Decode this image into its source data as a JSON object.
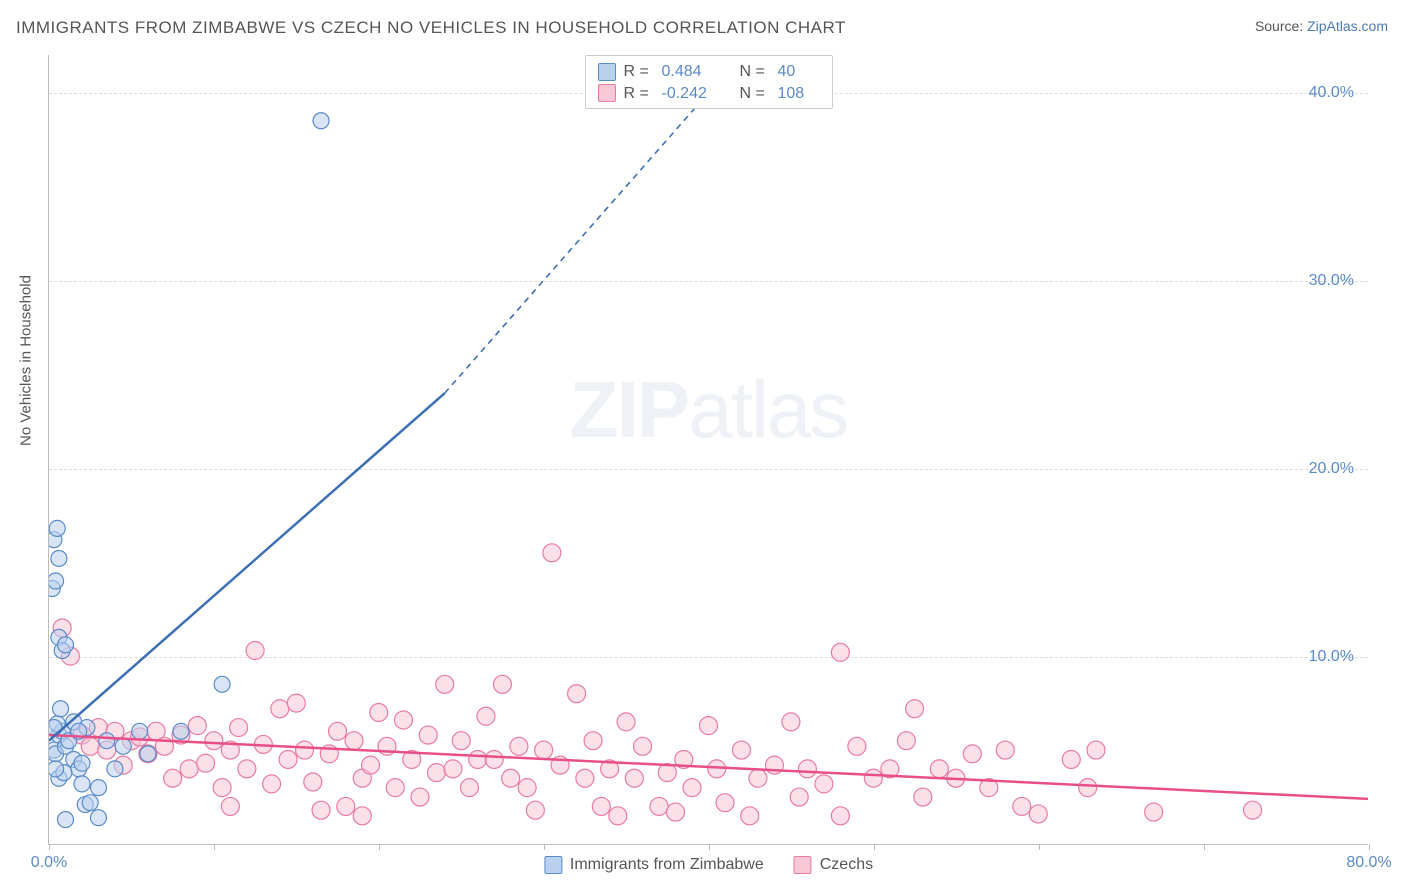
{
  "title": "IMMIGRANTS FROM ZIMBABWE VS CZECH NO VEHICLES IN HOUSEHOLD CORRELATION CHART",
  "source_prefix": "Source: ",
  "source_link": "ZipAtlas.com",
  "y_axis_label": "No Vehicles in Household",
  "watermark_a": "ZIP",
  "watermark_b": "atlas",
  "chart": {
    "type": "scatter",
    "background_color": "#ffffff",
    "grid_color": "#dddddd",
    "axis_color": "#bbbbbb",
    "xlim": [
      0,
      80
    ],
    "ylim": [
      0,
      42
    ],
    "x_ticks": [
      0,
      10,
      20,
      30,
      40,
      50,
      60,
      70,
      80
    ],
    "x_tick_labels": {
      "0": "0.0%",
      "80": "80.0%"
    },
    "y_ticks": [
      10,
      20,
      30,
      40
    ],
    "y_tick_labels": {
      "10": "10.0%",
      "20": "20.0%",
      "30": "30.0%",
      "40": "40.0%"
    },
    "tick_label_color": "#5a8bc9",
    "tick_label_fontsize": 16,
    "title_fontsize": 17,
    "title_color": "#555555",
    "axis_label_fontsize": 15
  },
  "series_a": {
    "name": "Immigrants from Zimbabwe",
    "fill_color": "#b9d0ee",
    "stroke_color": "#5a8bc9",
    "line_color": "#3d6fb5",
    "marker_radius": 8,
    "fill_opacity": 0.55,
    "R_label": "R =",
    "R_value": "0.484",
    "N_label": "N =",
    "N_value": "40",
    "trend": {
      "x1": 0,
      "y1": 5.5,
      "x2": 24,
      "y2": 24,
      "x2_dash": 42,
      "y2_dash": 42
    },
    "points": [
      [
        0.3,
        5.0
      ],
      [
        0.4,
        4.8
      ],
      [
        0.6,
        5.8
      ],
      [
        0.8,
        6.0
      ],
      [
        0.5,
        6.4
      ],
      [
        0.3,
        6.2
      ],
      [
        1.0,
        5.2
      ],
      [
        1.2,
        5.5
      ],
      [
        1.5,
        4.5
      ],
      [
        1.8,
        4.0
      ],
      [
        2.0,
        3.2
      ],
      [
        2.2,
        2.1
      ],
      [
        2.5,
        2.2
      ],
      [
        1.0,
        1.3
      ],
      [
        3.0,
        1.4
      ],
      [
        0.6,
        3.5
      ],
      [
        0.9,
        3.8
      ],
      [
        0.4,
        4.0
      ],
      [
        0.2,
        13.6
      ],
      [
        0.4,
        14.0
      ],
      [
        0.3,
        16.2
      ],
      [
        0.5,
        16.8
      ],
      [
        0.6,
        15.2
      ],
      [
        0.6,
        11.0
      ],
      [
        0.8,
        10.3
      ],
      [
        1.0,
        10.6
      ],
      [
        1.5,
        6.5
      ],
      [
        2.3,
        6.2
      ],
      [
        3.5,
        5.5
      ],
      [
        4.5,
        5.2
      ],
      [
        5.5,
        6.0
      ],
      [
        6.0,
        4.8
      ],
      [
        8.0,
        6.0
      ],
      [
        10.5,
        8.5
      ],
      [
        16.5,
        38.5
      ],
      [
        3.0,
        3.0
      ],
      [
        0.7,
        7.2
      ],
      [
        1.8,
        6.0
      ],
      [
        2.0,
        4.3
      ],
      [
        4.0,
        4.0
      ]
    ]
  },
  "series_b": {
    "name": "Czechs",
    "fill_color": "#f7c7d6",
    "stroke_color": "#e97ba3",
    "line_color": "#e84f88",
    "marker_radius": 9,
    "fill_opacity": 0.55,
    "R_label": "R =",
    "R_value": "-0.242",
    "N_label": "N =",
    "N_value": "108",
    "trend": {
      "x1": 0,
      "y1": 5.8,
      "x2": 80,
      "y2": 2.4
    },
    "points": [
      [
        0.8,
        11.5
      ],
      [
        1.3,
        10.0
      ],
      [
        2.0,
        5.8
      ],
      [
        2.5,
        5.2
      ],
      [
        3.0,
        6.2
      ],
      [
        3.5,
        5.0
      ],
      [
        4.0,
        6.0
      ],
      [
        4.5,
        4.2
      ],
      [
        5.0,
        5.5
      ],
      [
        5.5,
        5.7
      ],
      [
        6.0,
        4.8
      ],
      [
        6.5,
        6.0
      ],
      [
        7.0,
        5.2
      ],
      [
        7.5,
        3.5
      ],
      [
        8.0,
        5.8
      ],
      [
        8.5,
        4.0
      ],
      [
        9.0,
        6.3
      ],
      [
        9.5,
        4.3
      ],
      [
        10.0,
        5.5
      ],
      [
        10.5,
        3.0
      ],
      [
        11.0,
        5.0
      ],
      [
        11.5,
        6.2
      ],
      [
        12.0,
        4.0
      ],
      [
        12.5,
        10.3
      ],
      [
        13.0,
        5.3
      ],
      [
        13.5,
        3.2
      ],
      [
        14.0,
        7.2
      ],
      [
        14.5,
        4.5
      ],
      [
        15.0,
        7.5
      ],
      [
        15.5,
        5.0
      ],
      [
        16.0,
        3.3
      ],
      [
        16.5,
        1.8
      ],
      [
        17.0,
        4.8
      ],
      [
        17.5,
        6.0
      ],
      [
        18.0,
        2.0
      ],
      [
        18.5,
        5.5
      ],
      [
        19.0,
        3.5
      ],
      [
        19.5,
        4.2
      ],
      [
        20.0,
        7.0
      ],
      [
        20.5,
        5.2
      ],
      [
        21.0,
        3.0
      ],
      [
        21.5,
        6.6
      ],
      [
        22.0,
        4.5
      ],
      [
        22.5,
        2.5
      ],
      [
        23.0,
        5.8
      ],
      [
        23.5,
        3.8
      ],
      [
        24.0,
        8.5
      ],
      [
        24.5,
        4.0
      ],
      [
        25.0,
        5.5
      ],
      [
        25.5,
        3.0
      ],
      [
        26.0,
        4.5
      ],
      [
        26.5,
        6.8
      ],
      [
        27.0,
        4.5
      ],
      [
        27.5,
        8.5
      ],
      [
        28.0,
        3.5
      ],
      [
        28.5,
        5.2
      ],
      [
        29.0,
        3.0
      ],
      [
        29.5,
        1.8
      ],
      [
        30.0,
        5.0
      ],
      [
        30.5,
        15.5
      ],
      [
        31.0,
        4.2
      ],
      [
        32.0,
        8.0
      ],
      [
        32.5,
        3.5
      ],
      [
        33.0,
        5.5
      ],
      [
        33.5,
        2.0
      ],
      [
        34.0,
        4.0
      ],
      [
        35.0,
        6.5
      ],
      [
        35.5,
        3.5
      ],
      [
        36.0,
        5.2
      ],
      [
        37.0,
        2.0
      ],
      [
        37.5,
        3.8
      ],
      [
        38.0,
        1.7
      ],
      [
        38.5,
        4.5
      ],
      [
        39.0,
        3.0
      ],
      [
        40.0,
        6.3
      ],
      [
        40.5,
        4.0
      ],
      [
        41.0,
        2.2
      ],
      [
        42.0,
        5.0
      ],
      [
        42.5,
        1.5
      ],
      [
        43.0,
        3.5
      ],
      [
        44.0,
        4.2
      ],
      [
        45.0,
        6.5
      ],
      [
        45.5,
        2.5
      ],
      [
        46.0,
        4.0
      ],
      [
        47.0,
        3.2
      ],
      [
        48.0,
        10.2
      ],
      [
        49.0,
        5.2
      ],
      [
        50.0,
        3.5
      ],
      [
        51.0,
        4.0
      ],
      [
        52.0,
        5.5
      ],
      [
        53.0,
        2.5
      ],
      [
        54.0,
        4.0
      ],
      [
        52.5,
        7.2
      ],
      [
        55.0,
        3.5
      ],
      [
        56.0,
        4.8
      ],
      [
        57.0,
        3.0
      ],
      [
        58.0,
        5.0
      ],
      [
        59.0,
        2.0
      ],
      [
        62.0,
        4.5
      ],
      [
        60.0,
        1.6
      ],
      [
        63.0,
        3.0
      ],
      [
        67.0,
        1.7
      ],
      [
        63.5,
        5.0
      ],
      [
        73.0,
        1.8
      ],
      [
        48.0,
        1.5
      ],
      [
        34.5,
        1.5
      ],
      [
        19.0,
        1.5
      ],
      [
        11.0,
        2.0
      ]
    ]
  }
}
